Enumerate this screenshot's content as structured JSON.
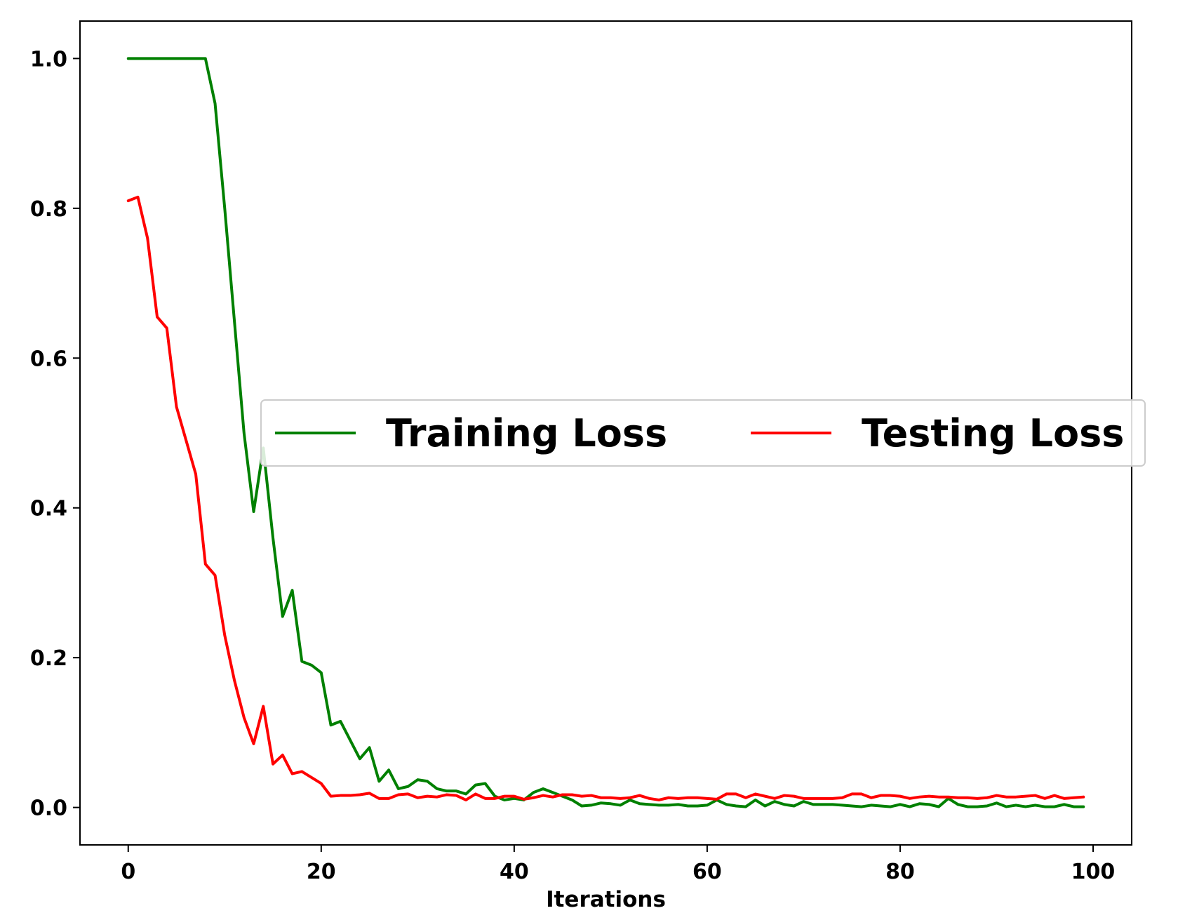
{
  "chart_data": {
    "type": "line",
    "title": "",
    "xlabel": "Iterations",
    "ylabel": "",
    "xlim": [
      -5,
      104
    ],
    "ylim": [
      -0.05,
      1.05
    ],
    "xticks": [
      0,
      20,
      40,
      60,
      80,
      100
    ],
    "yticks": [
      0.0,
      0.2,
      0.4,
      0.6,
      0.8,
      1.0
    ],
    "xtick_labels": [
      "0",
      "20",
      "40",
      "60",
      "80",
      "100"
    ],
    "ytick_labels": [
      "0.0",
      "0.2",
      "0.4",
      "0.6",
      "0.8",
      "1.0"
    ],
    "grid": false,
    "legend_position": "center-right",
    "series": [
      {
        "name": "Training Loss",
        "color": "#008000",
        "values": [
          1.0,
          1.0,
          1.0,
          1.0,
          1.0,
          1.0,
          1.0,
          1.0,
          1.0,
          0.94,
          0.8,
          0.65,
          0.5,
          0.395,
          0.48,
          0.36,
          0.255,
          0.29,
          0.195,
          0.19,
          0.18,
          0.11,
          0.115,
          0.09,
          0.065,
          0.08,
          0.035,
          0.05,
          0.025,
          0.028,
          0.037,
          0.035,
          0.025,
          0.022,
          0.022,
          0.018,
          0.03,
          0.032,
          0.015,
          0.01,
          0.012,
          0.01,
          0.02,
          0.025,
          0.02,
          0.015,
          0.01,
          0.002,
          0.003,
          0.006,
          0.005,
          0.003,
          0.01,
          0.005,
          0.004,
          0.003,
          0.003,
          0.004,
          0.002,
          0.002,
          0.003,
          0.01,
          0.004,
          0.002,
          0.001,
          0.01,
          0.002,
          0.008,
          0.004,
          0.002,
          0.008,
          0.004,
          0.004,
          0.004,
          0.003,
          0.002,
          0.001,
          0.003,
          0.002,
          0.001,
          0.004,
          0.001,
          0.005,
          0.004,
          0.001,
          0.012,
          0.004,
          0.001,
          0.001,
          0.002,
          0.006,
          0.001,
          0.003,
          0.001,
          0.003,
          0.001,
          0.001,
          0.004,
          0.001,
          0.001
        ]
      },
      {
        "name": "Testing Loss",
        "color": "#ff0000",
        "values": [
          0.81,
          0.815,
          0.76,
          0.655,
          0.64,
          0.535,
          0.49,
          0.445,
          0.325,
          0.31,
          0.23,
          0.17,
          0.12,
          0.085,
          0.135,
          0.058,
          0.07,
          0.045,
          0.048,
          0.04,
          0.032,
          0.015,
          0.016,
          0.016,
          0.017,
          0.019,
          0.012,
          0.012,
          0.017,
          0.018,
          0.013,
          0.015,
          0.014,
          0.017,
          0.016,
          0.01,
          0.018,
          0.012,
          0.012,
          0.015,
          0.015,
          0.011,
          0.013,
          0.016,
          0.014,
          0.017,
          0.017,
          0.015,
          0.016,
          0.013,
          0.013,
          0.012,
          0.013,
          0.016,
          0.012,
          0.01,
          0.013,
          0.012,
          0.013,
          0.013,
          0.012,
          0.011,
          0.018,
          0.018,
          0.013,
          0.018,
          0.015,
          0.012,
          0.016,
          0.015,
          0.012,
          0.012,
          0.012,
          0.012,
          0.013,
          0.018,
          0.018,
          0.013,
          0.016,
          0.016,
          0.015,
          0.012,
          0.014,
          0.015,
          0.014,
          0.014,
          0.013,
          0.013,
          0.012,
          0.013,
          0.016,
          0.014,
          0.014,
          0.015,
          0.016,
          0.012,
          0.016,
          0.012,
          0.013,
          0.014
        ]
      }
    ]
  }
}
